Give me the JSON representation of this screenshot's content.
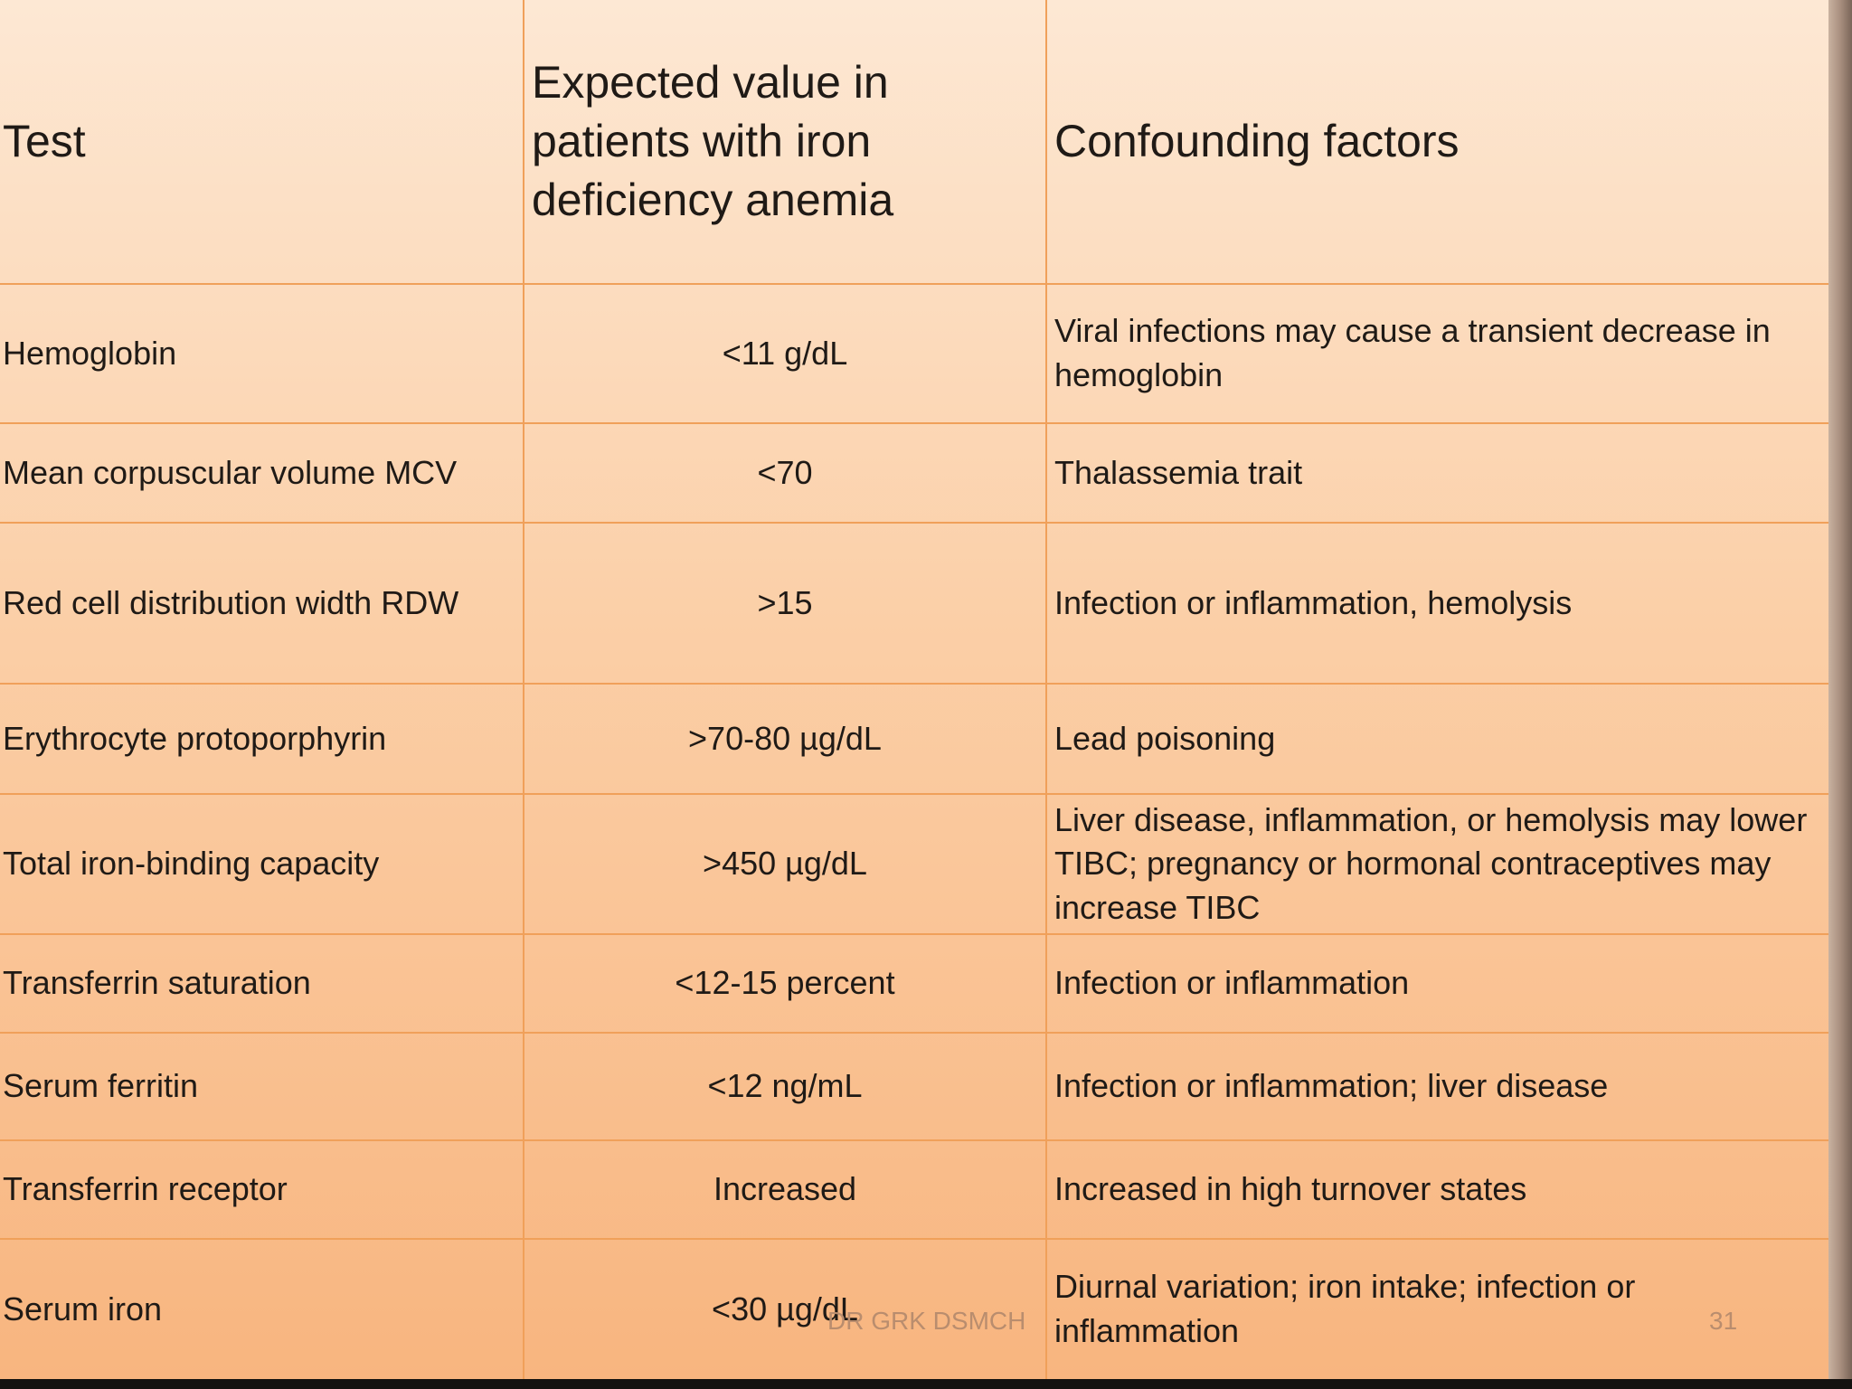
{
  "header": {
    "test": "Test",
    "expected": "Expected value in patients with iron deficiency anemia",
    "confounding": "Confounding factors"
  },
  "rows": [
    {
      "test": "Hemoglobin",
      "value": "<11 g/dL",
      "factors": "Viral infections may cause a transient decrease in hemoglobin"
    },
    {
      "test": "Mean corpuscular volume MCV",
      "value": "<70",
      "factors": "Thalassemia trait"
    },
    {
      "test": "Red cell distribution width RDW",
      "value": ">15",
      "factors": "Infection or inflammation, hemolysis"
    },
    {
      "test": "Erythrocyte protoporphyrin",
      "value": ">70-80 µg/dL",
      "factors": "Lead poisoning"
    },
    {
      "test": "Total iron-binding capacity",
      "value": ">450 µg/dL",
      "factors": "Liver disease, inflammation, or hemolysis may lower TIBC; pregnancy or hormonal contraceptives may increase TIBC"
    },
    {
      "test": "Transferrin saturation",
      "value": "<12-15 percent",
      "factors": "Infection or inflammation"
    },
    {
      "test": "Serum ferritin",
      "value": "<12 ng/mL",
      "factors": "Infection or inflammation; liver disease"
    },
    {
      "test": "Transferrin receptor",
      "value": "Increased",
      "factors": "Increased in high turnover states"
    },
    {
      "test": "Serum iron",
      "value": "<30 µg/dL",
      "factors": "Diurnal variation; iron intake; infection or inflammation"
    }
  ],
  "footer": {
    "author": "DR GRK DSMCH",
    "slide_number": "31"
  }
}
